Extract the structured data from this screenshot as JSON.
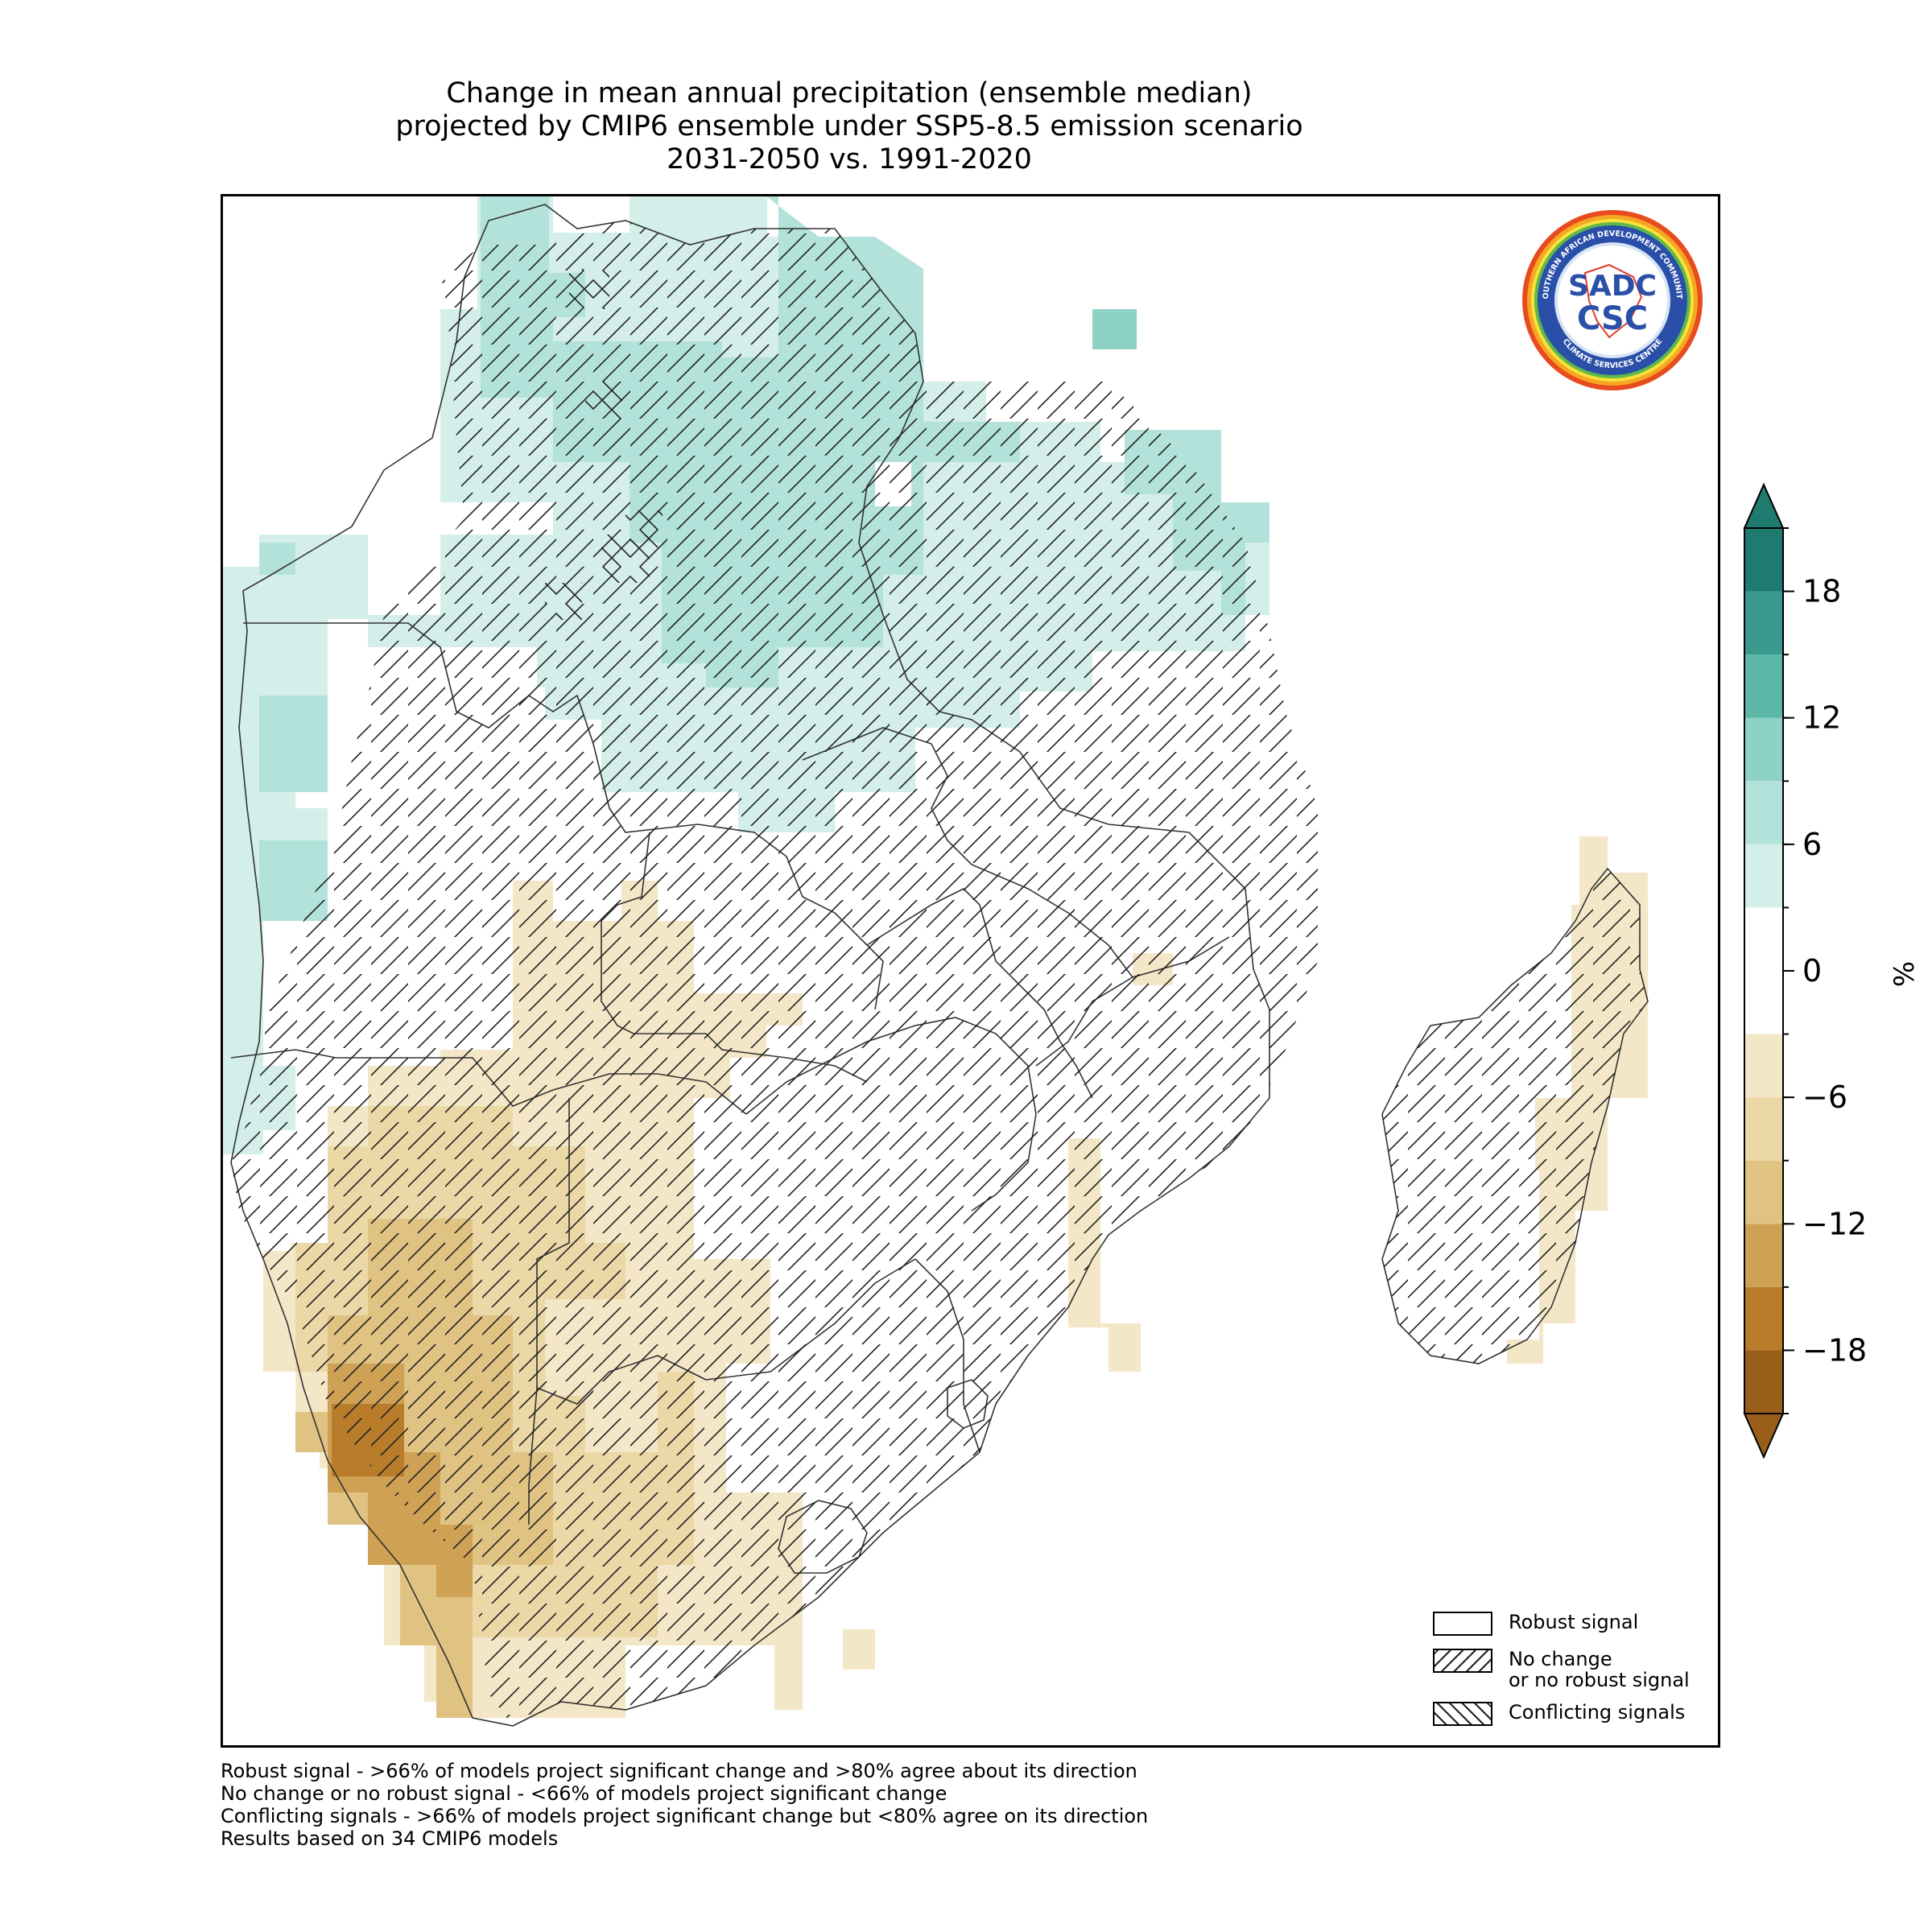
{
  "title": {
    "line1": "Change in mean annual precipitation (ensemble median)",
    "line2": "projected by CMIP6 ensemble under SSP5-8.5 emission scenario",
    "line3": "2031-2050 vs. 1991-2020"
  },
  "colorbar": {
    "unit": "%",
    "ticks": [
      "18",
      "12",
      "6",
      "0",
      "−6",
      "−12",
      "−18"
    ],
    "tick_values": [
      18,
      12,
      6,
      0,
      -6,
      -12,
      -18
    ],
    "range": [
      -21,
      21
    ],
    "boundaries": [
      -21,
      -18,
      -15,
      -12,
      -9,
      -6,
      -3,
      3,
      6,
      9,
      12,
      15,
      18,
      21
    ],
    "colors": [
      "#9a5e1b",
      "#b87c2a",
      "#cfa155",
      "#e0c282",
      "#ecd7a6",
      "#f4e7c7",
      "#ffffff",
      "#d4eee9",
      "#b2e2d9",
      "#8dd2c4",
      "#5cb7a9",
      "#3a9a8e",
      "#1f7a70"
    ],
    "extend": "both"
  },
  "legend": {
    "items": [
      {
        "label": "Robust signal",
        "hatch": "none"
      },
      {
        "label": "No change\nor no robust signal",
        "hatch": "forward"
      },
      {
        "label": "Conflicting signals",
        "hatch": "backward"
      }
    ]
  },
  "footnotes": [
    "Robust signal - >66% of models project significant change and >80% agree about its direction",
    "No change or no robust signal - <66% of models project significant change",
    "Conflicting signals - >66% of models project significant change but <80% agree on its direction",
    "Results based on 34 CMIP6 models"
  ],
  "logo": {
    "text_main": "SADC",
    "text_sub": "CSC",
    "ring_text": "SOUTHERN AFRICAN DEVELOPMENT COMMUNITY",
    "ring_text_bottom": "CLIMATE SERVICES CENTRE"
  },
  "map": {
    "region": "Southern Africa",
    "hatch_pattern": "No change or no robust signal over most land areas",
    "palette": {
      "wet_light": "#d4eee9",
      "wet_mid": "#b2e2d9",
      "wet_strong": "#8dd2c4",
      "dry_light": "#f4e7c7",
      "dry_mid": "#ecd7a6",
      "dry_strong": "#e0c282",
      "dry_heavy": "#cfa155",
      "dry_max": "#b87c2a"
    }
  }
}
